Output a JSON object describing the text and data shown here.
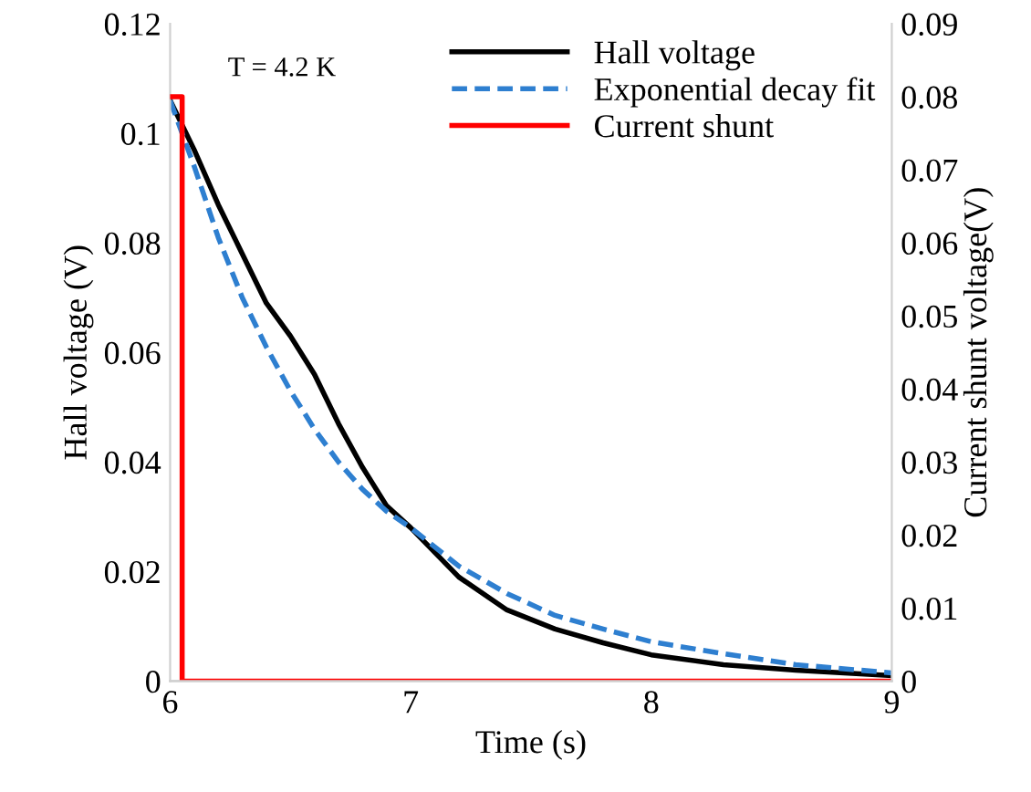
{
  "chart_data": {
    "type": "line",
    "xlabel": "Time (s)",
    "ylabel": "Hall voltage (V)",
    "y2label": "Current shunt voltage(V)",
    "annotations": [
      "T = 4.2 K"
    ],
    "xlim": [
      6,
      9
    ],
    "xticks": [
      6,
      7,
      8,
      9
    ],
    "ylim": [
      0,
      0.12
    ],
    "yticks": [
      0,
      0.02,
      0.04,
      0.06,
      0.08,
      0.1,
      0.12
    ],
    "y2lim": [
      0,
      0.09
    ],
    "y2ticks": [
      0,
      0.01,
      0.02,
      0.03,
      0.04,
      0.05,
      0.06,
      0.07,
      0.08,
      0.09
    ],
    "legend": "top right",
    "grid": false,
    "series": [
      {
        "name": "Hall voltage",
        "color": "#000000",
        "line_style": "solid",
        "x": [
          6.0,
          6.1,
          6.2,
          6.3,
          6.4,
          6.5,
          6.6,
          6.7,
          6.8,
          6.9,
          7.0,
          7.2,
          7.4,
          7.6,
          7.8,
          8.0,
          8.3,
          8.6,
          9.0
        ],
        "values": [
          0.106,
          0.097,
          0.087,
          0.078,
          0.069,
          0.063,
          0.056,
          0.047,
          0.039,
          0.032,
          0.028,
          0.019,
          0.013,
          0.0095,
          0.007,
          0.0048,
          0.003,
          0.002,
          0.001
        ]
      },
      {
        "name": "Exponential decay fit",
        "color": "#2e7fd0",
        "line_style": "dashed",
        "x": [
          6.0,
          6.1,
          6.2,
          6.3,
          6.4,
          6.5,
          6.6,
          6.7,
          6.8,
          6.9,
          7.0,
          7.2,
          7.4,
          7.6,
          7.8,
          8.0,
          8.3,
          8.6,
          9.0
        ],
        "values": [
          0.106,
          0.094,
          0.081,
          0.07,
          0.061,
          0.053,
          0.046,
          0.04,
          0.035,
          0.031,
          0.028,
          0.021,
          0.016,
          0.012,
          0.0095,
          0.0072,
          0.005,
          0.003,
          0.0015
        ]
      },
      {
        "name": "Current shunt",
        "color": "#ff0000",
        "line_style": "solid",
        "axis": "y2",
        "x": [
          6.0,
          6.03,
          6.05,
          6.05,
          9.0
        ],
        "values": [
          0.08,
          0.08,
          0.08,
          0,
          0
        ]
      }
    ]
  }
}
